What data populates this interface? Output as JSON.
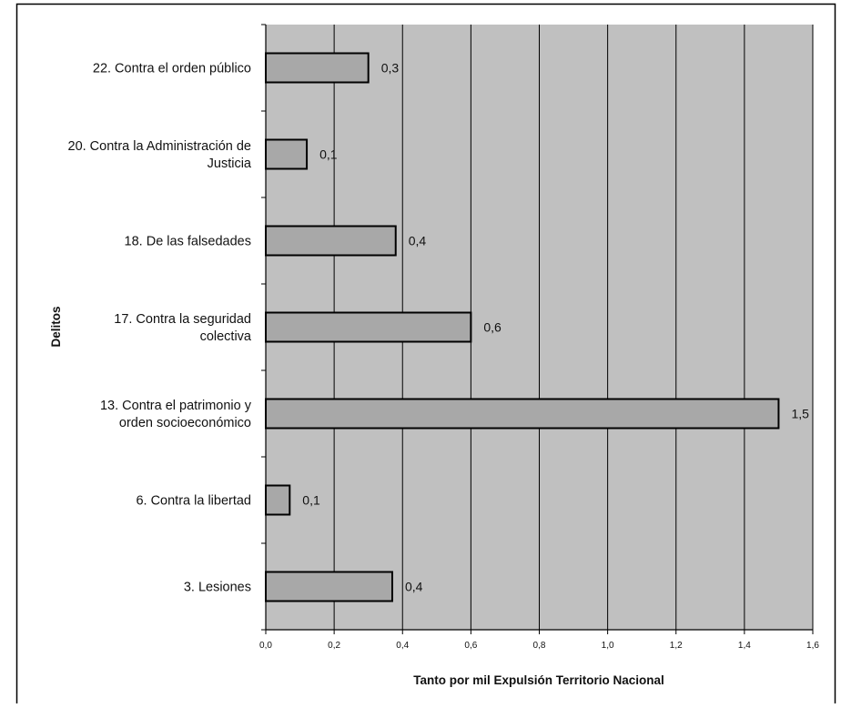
{
  "chart_data": {
    "type": "bar",
    "orientation": "horizontal",
    "categories": [
      [
        "22. Contra el orden público"
      ],
      [
        "20. Contra la Administración de",
        "Justicia"
      ],
      [
        "18. De las falsedades"
      ],
      [
        "17. Contra la seguridad",
        "colectiva"
      ],
      [
        "13. Contra el patrimonio y",
        "orden socioeconómico"
      ],
      [
        "6. Contra la libertad"
      ],
      [
        "3. Lesiones"
      ]
    ],
    "values": [
      0.3,
      0.12,
      0.38,
      0.6,
      1.5,
      0.07,
      0.37
    ],
    "data_labels": [
      "0,3",
      "0,1",
      "0,4",
      "0,6",
      "1,5",
      "0,1",
      "0,4"
    ],
    "xlim": [
      0,
      1.6
    ],
    "xticks": [
      "0,0",
      "0,2",
      "0,4",
      "0,6",
      "0,8",
      "1,0",
      "1,2",
      "1,4",
      "1,6"
    ],
    "xlabel": "Tanto por mil Expulsión Territorio Nacional",
    "ylabel": "Delitos",
    "grid": "vertical",
    "colors": {
      "plot_background": "#c0c0c0",
      "bar_fill": "#a8a8a8",
      "bar_stroke": "#000000",
      "gridline": "#000000",
      "frame": "#000000"
    }
  }
}
